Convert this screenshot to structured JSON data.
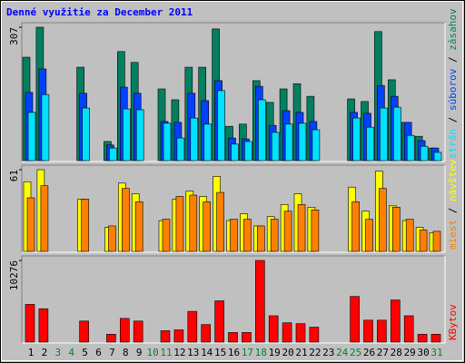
{
  "chart_data": [
    {
      "type": "bar",
      "title": "Denné využitie za December 2011",
      "categories": [
        "1",
        "2",
        "3",
        "4",
        "5",
        "6",
        "7",
        "8",
        "9",
        "10",
        "11",
        "12",
        "13",
        "14",
        "15",
        "16",
        "17",
        "18",
        "19",
        "20",
        "21",
        "22",
        "23",
        "24",
        "25",
        "26",
        "27",
        "28",
        "29",
        "30",
        "31"
      ],
      "category_colors": [
        "#000000",
        "#000000",
        "#008040",
        "#008040",
        "#000000",
        "#000000",
        "#000000",
        "#000000",
        "#000000",
        "#008040",
        "#008040",
        "#000000",
        "#000000",
        "#000000",
        "#000000",
        "#000000",
        "#008040",
        "#008040",
        "#000000",
        "#000000",
        "#000000",
        "#000000",
        "#000000",
        "#008040",
        "#008040",
        "#000000",
        "#000000",
        "#000000",
        "#000000",
        "#000000",
        "#008040"
      ],
      "legend_separator": " / ",
      "ylim": [
        0,
        307
      ],
      "yticks": [
        307
      ],
      "series": [
        {
          "name": "zásahov",
          "color": "#008060",
          "values": [
            238,
            307,
            0,
            0,
            215,
            0,
            44,
            251,
            226,
            0,
            165,
            140,
            215,
            215,
            303,
            79,
            84,
            184,
            134,
            165,
            177,
            148,
            0,
            0,
            142,
            136,
            297,
            186,
            88,
            56,
            29
          ]
        },
        {
          "name": "súborov",
          "color": "#0040ff",
          "values": [
            157,
            211,
            0,
            0,
            155,
            0,
            36,
            169,
            155,
            0,
            90,
            88,
            155,
            138,
            184,
            52,
            50,
            171,
            81,
            115,
            111,
            90,
            0,
            0,
            111,
            109,
            173,
            148,
            88,
            46,
            29
          ]
        },
        {
          "name": "strán",
          "color": "#00e0ff",
          "values": [
            111,
            152,
            0,
            0,
            121,
            0,
            29,
            119,
            117,
            0,
            86,
            52,
            98,
            84,
            161,
            38,
            44,
            140,
            65,
            84,
            86,
            71,
            0,
            0,
            98,
            77,
            121,
            123,
            58,
            33,
            19
          ]
        }
      ]
    },
    {
      "type": "bar",
      "legend_separator": " / ",
      "ylim": [
        0,
        61
      ],
      "yticks": [
        61
      ],
      "series": [
        {
          "name": "návštev",
          "color": "#ffff00",
          "values": [
            52,
            61,
            0,
            0,
            39,
            0,
            18,
            51,
            43,
            0,
            23,
            39,
            45,
            41,
            56,
            23,
            28,
            19,
            26,
            35,
            43,
            33,
            0,
            0,
            48,
            30,
            60,
            34,
            23,
            18,
            14
          ]
        },
        {
          "name": "miest",
          "color": "#ff8000",
          "values": [
            40,
            49,
            0,
            0,
            39,
            0,
            19,
            47,
            37,
            0,
            24,
            41,
            42,
            37,
            44,
            24,
            24,
            19,
            24,
            30,
            35,
            31,
            0,
            0,
            37,
            24,
            47,
            33,
            24,
            16,
            15
          ]
        }
      ]
    },
    {
      "type": "bar",
      "ylim": [
        0,
        10276
      ],
      "yticks": [
        10276
      ],
      "series": [
        {
          "name": "KBytov",
          "color": "#ff0000",
          "values": [
            4751,
            4199,
            0,
            0,
            2652,
            0,
            994,
            2983,
            2652,
            0,
            1436,
            1547,
            3867,
            2210,
            5193,
            1215,
            1215,
            10276,
            3315,
            2431,
            2320,
            1878,
            0,
            0,
            5746,
            2762,
            2762,
            5304,
            3315,
            994,
            994
          ]
        }
      ]
    }
  ]
}
